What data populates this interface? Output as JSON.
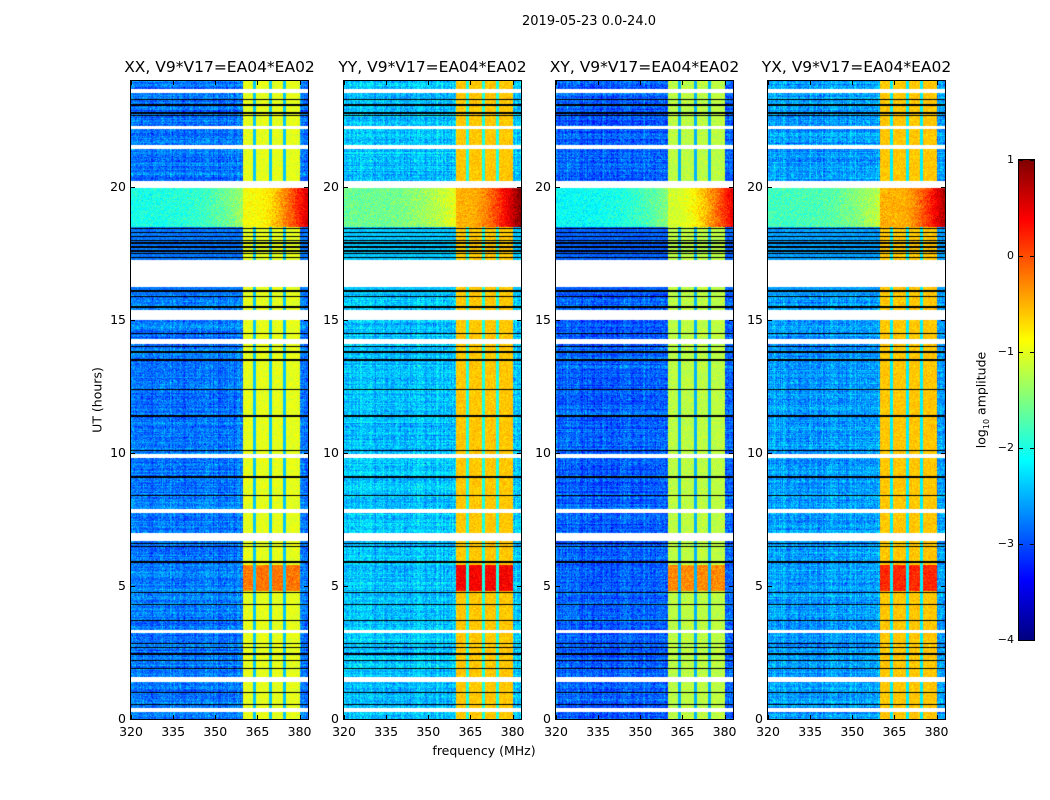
{
  "chart_data": {
    "type": "heatmap",
    "title": "2019-05-23 0.0-24.0",
    "xlabel": "frequency (MHz)",
    "ylabel": "UT (hours)",
    "xlim": [
      320,
      383
    ],
    "ylim": [
      0,
      24
    ],
    "xticks": [
      "320",
      "335",
      "350",
      "365",
      "380"
    ],
    "xtick_values": [
      320,
      335,
      350,
      365,
      380
    ],
    "yticks": [
      "0",
      "5",
      "10",
      "15",
      "20"
    ],
    "ytick_values": [
      0,
      5,
      10,
      15,
      20
    ],
    "colorbar": {
      "label_prefix": "log",
      "label_sub": "10",
      "label_suffix": " amplitude",
      "range": [
        -4,
        1
      ],
      "ticks": [
        "1",
        "0",
        "−1",
        "−2",
        "−3",
        "−4"
      ],
      "tick_values": [
        1,
        0,
        -1,
        -2,
        -3,
        -4
      ],
      "colormap": "jet"
    },
    "panels": [
      {
        "title": "XX, V9*V17=EA04*EA02",
        "background_log10": -2.8,
        "band_log10": -1.0,
        "burst_log10": -0.2
      },
      {
        "title": "YY, V9*V17=EA04*EA02",
        "background_log10": -2.4,
        "band_log10": -0.6,
        "burst_log10": 0.4
      },
      {
        "title": "XY, V9*V17=EA04*EA02",
        "background_log10": -2.9,
        "band_log10": -1.2,
        "burst_log10": -0.3
      },
      {
        "title": "YX, V9*V17=EA04*EA02",
        "background_log10": -2.6,
        "band_log10": -0.6,
        "burst_log10": 0.2
      }
    ],
    "band_mhz": [
      360,
      380
    ],
    "band_notches_mhz": [
      364,
      369.6,
      374.6
    ],
    "burst_hours": [
      4.8,
      5.8
    ],
    "strong_broadband_hours": [
      18.5,
      20.0
    ],
    "flagged_hours": [
      [
        0.25,
        0.42
      ],
      [
        1.4,
        1.57
      ],
      [
        3.25,
        3.35
      ],
      [
        6.7,
        7.0
      ],
      [
        7.75,
        7.9
      ],
      [
        9.8,
        9.95
      ],
      [
        14.1,
        14.3
      ],
      [
        15.0,
        15.4
      ],
      [
        16.25,
        17.27
      ],
      [
        19.96,
        20.25
      ],
      [
        21.45,
        21.6
      ],
      [
        22.2,
        22.3
      ],
      [
        23.55,
        23.7
      ]
    ],
    "blank_black_hours": [
      0.55,
      1.0,
      1.9,
      2.2,
      2.45,
      2.7,
      2.85,
      3.7,
      4.3,
      4.75,
      5.9,
      6.5,
      6.6,
      8.4,
      9.1,
      10.1,
      11.4,
      12.4,
      13.5,
      13.8,
      14.0,
      14.5,
      15.5,
      15.9,
      16.1,
      17.35,
      17.5,
      17.6,
      17.75,
      17.9,
      18.0,
      18.15,
      18.3,
      18.45,
      22.7,
      22.8,
      23.1,
      23.3
    ]
  }
}
